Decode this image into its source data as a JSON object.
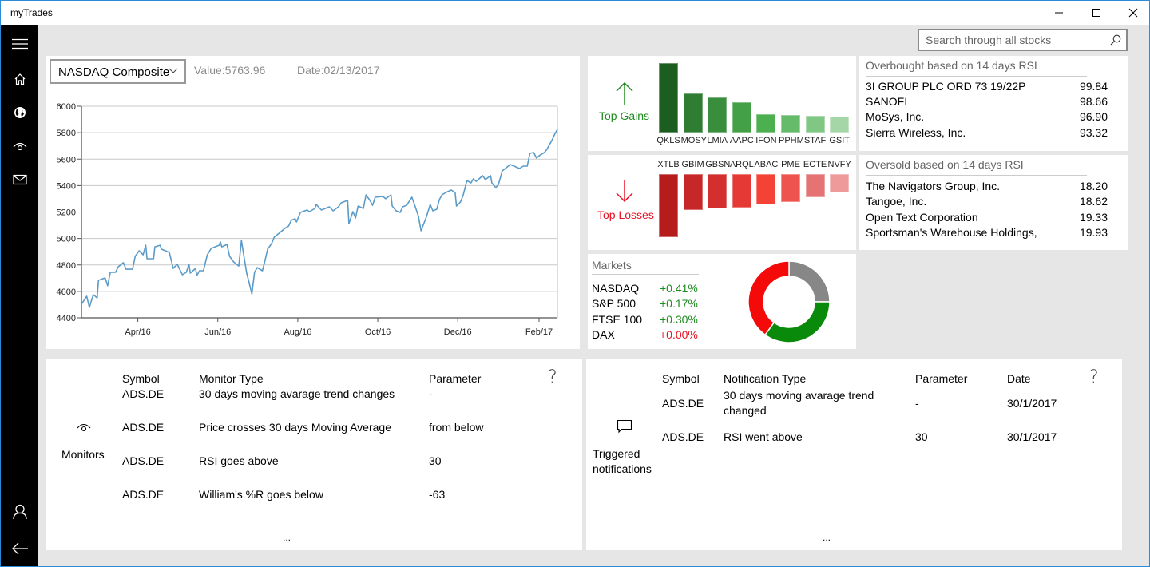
{
  "window": {
    "title": "myTrades",
    "controls": [
      "minimize",
      "maximize",
      "close"
    ]
  },
  "sidebar": {
    "items": [
      {
        "name": "menu",
        "icon": "hamburger-icon"
      },
      {
        "name": "home",
        "icon": "home-icon"
      },
      {
        "name": "markets",
        "icon": "globe-icon"
      },
      {
        "name": "monitors",
        "icon": "eye-icon"
      },
      {
        "name": "messages",
        "icon": "mail-icon"
      },
      {
        "name": "account",
        "icon": "user-icon"
      },
      {
        "name": "back",
        "icon": "back-arrow-icon"
      }
    ]
  },
  "search": {
    "placeholder": "Search through all stocks",
    "value": "",
    "icon": "search-icon"
  },
  "index_panel": {
    "selected_index": "NASDAQ Composite",
    "value_label": "Value:5763.96",
    "date_label": "Date:02/13/2017"
  },
  "top_gains": {
    "label": "Top Gains",
    "icon": "arrow-up-icon",
    "color": "#1e8a1e",
    "symbols": [
      "QKLS",
      "MOSY",
      "LMIA",
      "AAPC",
      "IFON",
      "PPHM",
      "STAF",
      "GSIT"
    ],
    "relative_values": [
      100,
      56,
      51,
      44,
      26,
      25,
      24,
      23
    ],
    "bar_colors": [
      "#1b5e20",
      "#2e7d32",
      "#388e3c",
      "#43a047",
      "#4caf50",
      "#66bb6a",
      "#81c784",
      "#a5d6a7"
    ]
  },
  "top_losses": {
    "label": "Top Losses",
    "icon": "arrow-down-icon",
    "color": "#e81123",
    "symbols": [
      "XTLB",
      "GBIM",
      "GBSN",
      "ARQL",
      "ABAC",
      "PME",
      "ECTE",
      "NVFY"
    ],
    "relative_values": [
      100,
      57,
      54,
      53,
      48,
      44,
      37,
      29
    ],
    "bar_colors": [
      "#b71c1c",
      "#c62828",
      "#d32f2f",
      "#e53935",
      "#f44336",
      "#ef5350",
      "#e57373",
      "#ef9a9a"
    ]
  },
  "overbought": {
    "title": "Overbought based on 14 days RSI",
    "rows": [
      {
        "name": "3I GROUP PLC ORD 73 19/22P",
        "value": "99.84"
      },
      {
        "name": "SANOFI",
        "value": "98.66"
      },
      {
        "name": "MoSys, Inc.",
        "value": "96.90"
      },
      {
        "name": "Sierra Wireless, Inc.",
        "value": "93.32"
      }
    ]
  },
  "oversold": {
    "title": "Oversold based on 14 days RSI",
    "rows": [
      {
        "name": "The Navigators Group, Inc.",
        "value": "18.20"
      },
      {
        "name": "Tangoe, Inc.",
        "value": "18.62"
      },
      {
        "name": "Open Text Corporation",
        "value": "19.33"
      },
      {
        "name": "Sportsman's Warehouse Holdings,",
        "value": "19.93"
      }
    ]
  },
  "markets": {
    "title": "Markets",
    "rows": [
      {
        "name": "NASDAQ",
        "change": "+0.41%",
        "color": "#1e8a1e"
      },
      {
        "name": "S&P 500",
        "change": "+0.17%",
        "color": "#1e8a1e"
      },
      {
        "name": "FTSE 100",
        "change": "+0.30%",
        "color": "#1e8a1e"
      },
      {
        "name": "DAX",
        "change": "+0.00%",
        "color": "#e81123"
      }
    ],
    "donut": [
      {
        "label": "neutral",
        "fraction": 0.25,
        "color": "#878787"
      },
      {
        "label": "up",
        "fraction": 0.35,
        "color": "#0a8a0a"
      },
      {
        "label": "down",
        "fraction": 0.4,
        "color": "#f50a0a"
      }
    ]
  },
  "monitors": {
    "label": "Monitors",
    "icon": "eye-icon",
    "headers": [
      "Symbol",
      "Monitor Type",
      "Parameter"
    ],
    "help": "?",
    "rows": [
      {
        "symbol": "ADS.DE",
        "type": "30 days moving avarage trend changes",
        "parameter": "-"
      },
      {
        "symbol": "ADS.DE",
        "type": "Price crosses 30 days Moving Average",
        "parameter": "from below"
      },
      {
        "symbol": "ADS.DE",
        "type": "RSI goes above",
        "parameter": "30"
      },
      {
        "symbol": "ADS.DE",
        "type": "William's %R goes below",
        "parameter": "-63"
      }
    ],
    "more": "..."
  },
  "notifications": {
    "label_line1": "Triggered",
    "label_line2": "notifications",
    "icon": "comment-icon",
    "headers": [
      "Symbol",
      "Notification Type",
      "Parameter",
      "Date"
    ],
    "help": "?",
    "rows": [
      {
        "symbol": "ADS.DE",
        "type_line1": "30 days moving avarage trend",
        "type_line2": "changed",
        "parameter": "-",
        "date": "30/1/2017"
      },
      {
        "symbol": "ADS.DE",
        "type_line1": "RSI went above",
        "type_line2": "",
        "parameter": "30",
        "date": "30/1/2017"
      }
    ],
    "more": "..."
  },
  "chart_data": {
    "type": "line",
    "title": "",
    "xlabel": "",
    "ylabel": "",
    "ylim": [
      4400,
      6000
    ],
    "yticks": [
      4400,
      4600,
      4800,
      5000,
      5200,
      5400,
      5600,
      5800,
      6000
    ],
    "xlim": [
      "2016-02-18",
      "2017-02-15"
    ],
    "xticks": [
      {
        "date": "2016-04-01",
        "label": "Apr/16"
      },
      {
        "date": "2016-06-01",
        "label": "Jun/16"
      },
      {
        "date": "2016-08-01",
        "label": "Aug/16"
      },
      {
        "date": "2016-10-01",
        "label": "Oct/16"
      },
      {
        "date": "2016-12-01",
        "label": "Dec/16"
      },
      {
        "date": "2017-02-01",
        "label": "Feb/17"
      }
    ],
    "grid": true,
    "line_color": "#5b9bc9",
    "series": [
      {
        "name": "NASDAQ Composite",
        "points": [
          [
            "2016-02-18",
            4503
          ],
          [
            "2016-02-22",
            4563
          ],
          [
            "2016-02-24",
            4479
          ],
          [
            "2016-02-27",
            4575
          ],
          [
            "2016-03-01",
            4551
          ],
          [
            "2016-03-02",
            4684
          ],
          [
            "2016-03-07",
            4702
          ],
          [
            "2016-03-09",
            4642
          ],
          [
            "2016-03-11",
            4744
          ],
          [
            "2016-03-15",
            4744
          ],
          [
            "2016-03-17",
            4786
          ],
          [
            "2016-03-21",
            4817
          ],
          [
            "2016-03-23",
            4768
          ],
          [
            "2016-03-28",
            4768
          ],
          [
            "2016-03-30",
            4865
          ],
          [
            "2016-04-02",
            4907
          ],
          [
            "2016-04-05",
            4877
          ],
          [
            "2016-04-07",
            4949
          ],
          [
            "2016-04-08",
            4847
          ],
          [
            "2016-04-13",
            4847
          ],
          [
            "2016-04-14",
            4937
          ],
          [
            "2016-04-18",
            4949
          ],
          [
            "2016-04-19",
            4919
          ],
          [
            "2016-04-25",
            4895
          ],
          [
            "2016-04-28",
            4774
          ],
          [
            "2016-05-01",
            4805
          ],
          [
            "2016-05-05",
            4726
          ],
          [
            "2016-05-08",
            4744
          ],
          [
            "2016-05-10",
            4805
          ],
          [
            "2016-05-11",
            4738
          ],
          [
            "2016-05-15",
            4774
          ],
          [
            "2016-05-16",
            4720
          ],
          [
            "2016-05-18",
            4756
          ],
          [
            "2016-05-21",
            4756
          ],
          [
            "2016-05-24",
            4877
          ],
          [
            "2016-05-27",
            4925
          ],
          [
            "2016-06-02",
            4949
          ],
          [
            "2016-06-03",
            4974
          ],
          [
            "2016-06-04",
            4937
          ],
          [
            "2016-06-08",
            4955
          ],
          [
            "2016-06-10",
            4865
          ],
          [
            "2016-06-13",
            4823
          ],
          [
            "2016-06-17",
            4792
          ],
          [
            "2016-06-19",
            4986
          ],
          [
            "2016-06-21",
            4859
          ],
          [
            "2016-06-23",
            4738
          ],
          [
            "2016-06-27",
            4581
          ],
          [
            "2016-06-29",
            4744
          ],
          [
            "2016-07-01",
            4780
          ],
          [
            "2016-07-05",
            4756
          ],
          [
            "2016-07-07",
            4835
          ],
          [
            "2016-07-09",
            4919
          ],
          [
            "2016-07-12",
            4962
          ],
          [
            "2016-07-14",
            5010
          ],
          [
            "2016-07-17",
            5034
          ],
          [
            "2016-07-20",
            5058
          ],
          [
            "2016-07-22",
            5076
          ],
          [
            "2016-07-25",
            5094
          ],
          [
            "2016-07-27",
            5137
          ],
          [
            "2016-07-30",
            5149
          ],
          [
            "2016-07-31",
            5125
          ],
          [
            "2016-08-03",
            5197
          ],
          [
            "2016-08-08",
            5215
          ],
          [
            "2016-08-10",
            5203
          ],
          [
            "2016-08-14",
            5227
          ],
          [
            "2016-08-15",
            5257
          ],
          [
            "2016-08-19",
            5215
          ],
          [
            "2016-08-25",
            5239
          ],
          [
            "2016-08-28",
            5209
          ],
          [
            "2016-09-01",
            5239
          ],
          [
            "2016-09-03",
            5269
          ],
          [
            "2016-09-08",
            5288
          ],
          [
            "2016-09-09",
            5112
          ],
          [
            "2016-09-12",
            5203
          ],
          [
            "2016-09-14",
            5155
          ],
          [
            "2016-09-16",
            5245
          ],
          [
            "2016-09-20",
            5227
          ],
          [
            "2016-09-22",
            5330
          ],
          [
            "2016-09-25",
            5288
          ],
          [
            "2016-09-27",
            5251
          ],
          [
            "2016-09-29",
            5312
          ],
          [
            "2016-10-05",
            5318
          ],
          [
            "2016-10-07",
            5300
          ],
          [
            "2016-10-11",
            5330
          ],
          [
            "2016-10-12",
            5245
          ],
          [
            "2016-10-15",
            5209
          ],
          [
            "2016-10-18",
            5197
          ],
          [
            "2016-10-20",
            5239
          ],
          [
            "2016-10-23",
            5251
          ],
          [
            "2016-10-27",
            5312
          ],
          [
            "2016-10-30",
            5227
          ],
          [
            "2016-11-01",
            5167
          ],
          [
            "2016-11-03",
            5058
          ],
          [
            "2016-11-07",
            5161
          ],
          [
            "2016-11-10",
            5257
          ],
          [
            "2016-11-12",
            5209
          ],
          [
            "2016-11-15",
            5221
          ],
          [
            "2016-11-17",
            5294
          ],
          [
            "2016-11-19",
            5330
          ],
          [
            "2016-11-22",
            5348
          ],
          [
            "2016-11-26",
            5366
          ],
          [
            "2016-11-29",
            5348
          ],
          [
            "2016-11-30",
            5245
          ],
          [
            "2016-12-03",
            5275
          ],
          [
            "2016-12-05",
            5324
          ],
          [
            "2016-12-08",
            5438
          ],
          [
            "2016-12-11",
            5420
          ],
          [
            "2016-12-13",
            5451
          ],
          [
            "2016-12-15",
            5432
          ],
          [
            "2016-12-18",
            5457
          ],
          [
            "2016-12-20",
            5475
          ],
          [
            "2016-12-22",
            5445
          ],
          [
            "2016-12-26",
            5475
          ],
          [
            "2016-12-27",
            5420
          ],
          [
            "2016-12-30",
            5384
          ],
          [
            "2017-01-01",
            5408
          ],
          [
            "2017-01-04",
            5511
          ],
          [
            "2017-01-07",
            5535
          ],
          [
            "2017-01-10",
            5559
          ],
          [
            "2017-01-13",
            5547
          ],
          [
            "2017-01-17",
            5529
          ],
          [
            "2017-01-20",
            5547
          ],
          [
            "2017-01-23",
            5547
          ],
          [
            "2017-01-25",
            5644
          ],
          [
            "2017-01-28",
            5650
          ],
          [
            "2017-01-30",
            5608
          ],
          [
            "2017-02-02",
            5632
          ],
          [
            "2017-02-05",
            5650
          ],
          [
            "2017-02-07",
            5674
          ],
          [
            "2017-02-09",
            5710
          ],
          [
            "2017-02-11",
            5745
          ],
          [
            "2017-02-13",
            5790
          ],
          [
            "2017-02-15",
            5825
          ]
        ]
      }
    ]
  }
}
